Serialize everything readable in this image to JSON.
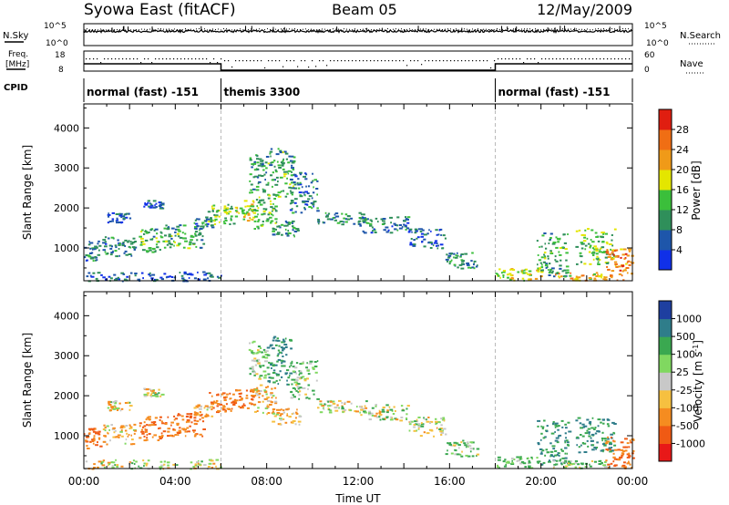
{
  "header": {
    "station": "Syowa East (fitACF)",
    "beam": "Beam 05",
    "date": "12/May/2009"
  },
  "strip": {
    "nsky_label": "N.Sky",
    "nsearch_label": "N.Search",
    "noise_ticks": [
      "10^5",
      "10^0"
    ],
    "freq_label": "Freq.",
    "freq_unit": "[MHz]",
    "freq_ticks": [
      "18",
      "8"
    ],
    "nave_label": "Nave",
    "nave_ticks": [
      "60",
      "0"
    ],
    "cpid_label": "CPID"
  },
  "modes": [
    {
      "label": "normal (fast) -151",
      "start": 0,
      "end": 6
    },
    {
      "label": "themis 3300",
      "start": 6,
      "end": 18
    },
    {
      "label": "normal (fast) -151",
      "start": 18,
      "end": 24
    }
  ],
  "x_axis": {
    "label": "Time UT",
    "range": [
      0,
      24
    ],
    "ticks": [
      {
        "v": 0,
        "label": "00:00"
      },
      {
        "v": 4,
        "label": "04:00"
      },
      {
        "v": 8,
        "label": "08:00"
      },
      {
        "v": 12,
        "label": "12:00"
      },
      {
        "v": 16,
        "label": "16:00"
      },
      {
        "v": 20,
        "label": "20:00"
      },
      {
        "v": 24,
        "label": "00:00"
      }
    ]
  },
  "y_axis": {
    "label": "Slant Range [km]",
    "range": [
      180,
      4600
    ],
    "ticks": [
      1000,
      2000,
      3000,
      4000
    ]
  },
  "power_scale": {
    "label": "Power [dB]",
    "levels": [
      "4",
      "8",
      "12",
      "16",
      "20",
      "24",
      "28"
    ],
    "colors": [
      "#1030e8",
      "#1e56aa",
      "#2f8f5a",
      "#3bbf3b",
      "#e4e600",
      "#f09a18",
      "#f06e14",
      "#e01e10"
    ]
  },
  "velocity_scale": {
    "label": "Velocity [m s",
    "label_sup": "-1",
    "label_tail": "]",
    "levels": [
      "-1000",
      "-500",
      "-100",
      "-25",
      "25",
      "100",
      "500",
      "1000"
    ],
    "colors": [
      "#e81818",
      "#f05a14",
      "#f58c20",
      "#f6c040",
      "#c8c8c8",
      "#80d860",
      "#3aa850",
      "#2f7d8a",
      "#1e3fa0"
    ]
  },
  "chart_data": {
    "type": "heatmap",
    "title": "Syowa East (fitACF)",
    "beam": "Beam 05",
    "date": "12/May/2009",
    "xlabel": "Time UT",
    "ylabel": "Slant Range [km]",
    "xlim": [
      0,
      24
    ],
    "ylim": [
      180,
      4600
    ],
    "panels": [
      "Power [dB]",
      "Velocity [m s-1]"
    ],
    "regions": [
      {
        "t": [
          0.0,
          0.7
        ],
        "r": [
          700,
          1200
        ],
        "power": 8,
        "velocity": -500
      },
      {
        "t": [
          0.8,
          2.2
        ],
        "r": [
          800,
          1300
        ],
        "power": 8,
        "velocity": -100
      },
      {
        "t": [
          1.0,
          2.0
        ],
        "r": [
          1650,
          1900
        ],
        "power": 6,
        "velocity": -25
      },
      {
        "t": [
          2.4,
          3.4
        ],
        "r": [
          900,
          1500
        ],
        "power": 12,
        "velocity": -500
      },
      {
        "t": [
          2.6,
          3.4
        ],
        "r": [
          2000,
          2200
        ],
        "power": 6,
        "velocity": -25
      },
      {
        "t": [
          3.4,
          5.2
        ],
        "r": [
          1000,
          1600
        ],
        "power": 12,
        "velocity": -500
      },
      {
        "t": [
          4.8,
          5.6
        ],
        "r": [
          1500,
          1800
        ],
        "power": 8,
        "velocity": -100
      },
      {
        "t": [
          5.4,
          6.6
        ],
        "r": [
          1600,
          2100
        ],
        "power": 14,
        "velocity": -500
      },
      {
        "t": [
          6.6,
          7.4
        ],
        "r": [
          1700,
          2200
        ],
        "power": 18,
        "velocity": -500
      },
      {
        "t": [
          7.4,
          8.4
        ],
        "r": [
          1500,
          2300
        ],
        "power": 14,
        "velocity": -100
      },
      {
        "t": [
          7.2,
          8.0
        ],
        "r": [
          2400,
          3400
        ],
        "power": 10,
        "velocity": 100
      },
      {
        "t": [
          8.0,
          9.2
        ],
        "r": [
          2300,
          3500
        ],
        "power": 12,
        "velocity": 500
      },
      {
        "t": [
          8.2,
          9.4
        ],
        "r": [
          1300,
          1700
        ],
        "power": 10,
        "velocity": -100
      },
      {
        "t": [
          9.0,
          10.2
        ],
        "r": [
          1900,
          2900
        ],
        "power": 8,
        "velocity": 100
      },
      {
        "t": [
          10.2,
          12.4
        ],
        "r": [
          1600,
          1900
        ],
        "power": 10,
        "velocity": -25
      },
      {
        "t": [
          12.0,
          14.2
        ],
        "r": [
          1400,
          1800
        ],
        "power": 8,
        "velocity": 25
      },
      {
        "t": [
          14.2,
          15.8
        ],
        "r": [
          1000,
          1500
        ],
        "power": 6,
        "velocity": 25
      },
      {
        "t": [
          15.8,
          17.2
        ],
        "r": [
          500,
          900
        ],
        "power": 10,
        "velocity": 100
      },
      {
        "t": [
          18.0,
          20.0
        ],
        "r": [
          200,
          500
        ],
        "power": 18,
        "velocity": 100
      },
      {
        "t": [
          19.8,
          21.2
        ],
        "r": [
          300,
          1400
        ],
        "power": 12,
        "velocity": 500
      },
      {
        "t": [
          20.5,
          22.8
        ],
        "r": [
          200,
          400
        ],
        "power": 20,
        "velocity": 100
      },
      {
        "t": [
          21.5,
          23.2
        ],
        "r": [
          600,
          1500
        ],
        "power": 14,
        "velocity": 500
      },
      {
        "t": [
          22.8,
          24.0
        ],
        "r": [
          200,
          1000
        ],
        "power": 24,
        "velocity": -500
      },
      {
        "t": [
          0.0,
          6.0
        ],
        "r": [
          190,
          420
        ],
        "power": 6,
        "velocity": -25
      }
    ]
  }
}
